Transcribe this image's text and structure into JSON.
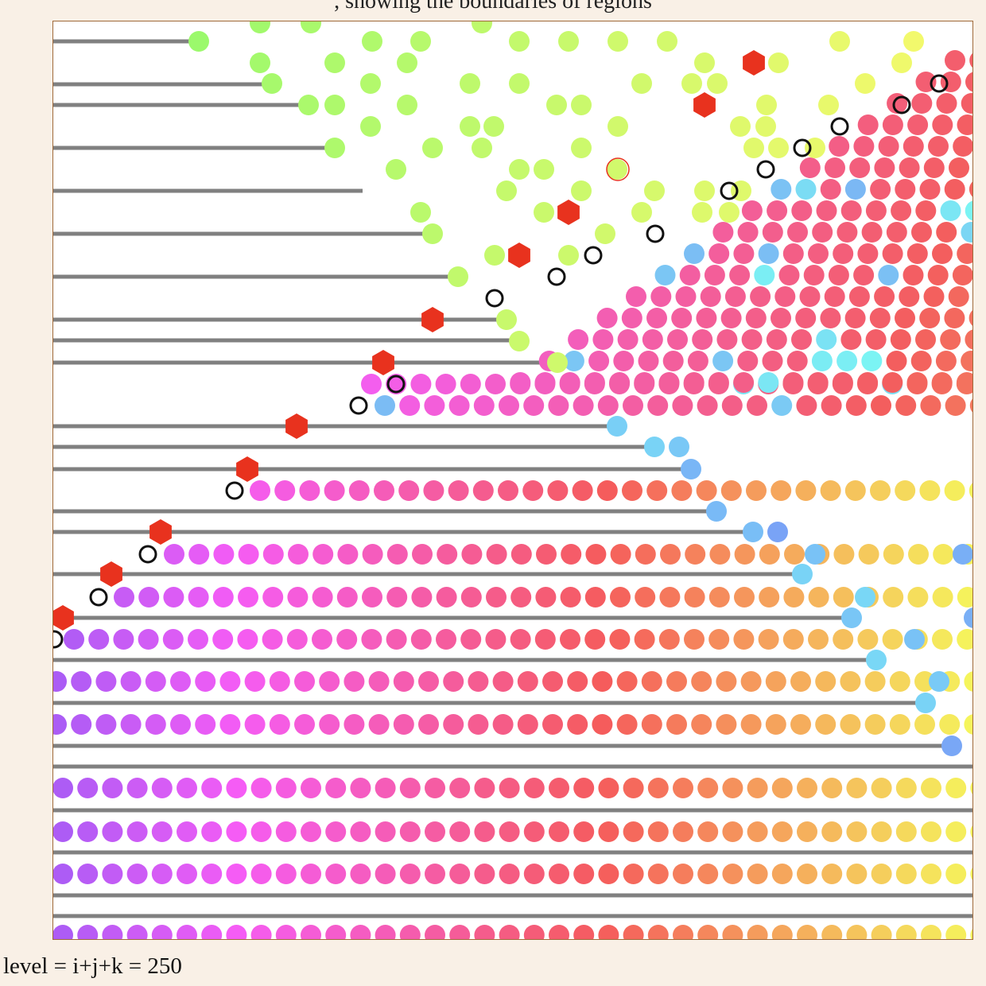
{
  "page": {
    "top_caption": ", showing the boundaries of regions",
    "level_label": "level = i+j+k = 250",
    "background_color": "#f9f0e6",
    "frame_border_color": "#a06a3a"
  },
  "visualization": {
    "line_color": "#808080",
    "marker_color": "#e8321e",
    "ring_stroke_color": "#111111"
  }
}
